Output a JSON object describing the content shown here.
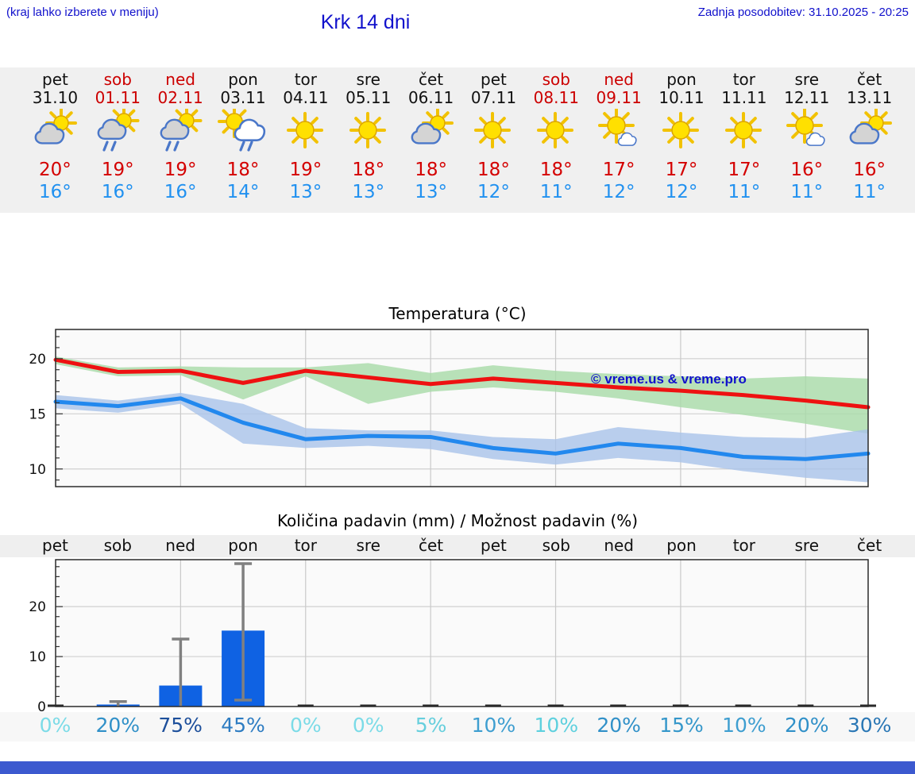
{
  "header": {
    "hint": "(kraj lahko izberete v meniju)",
    "title": "Krk 14 dni",
    "last_update": "Zadnja posodobitev: 31.10.2025 - 20:25"
  },
  "watermark": "© vreme.us & vreme.pro",
  "colors": {
    "link_blue": "#1111cc",
    "tmax_red": "#d40000",
    "tmin_blue": "#2191f0",
    "weekend_red": "#cc0000",
    "strip_bg": "#f0f0f0",
    "footer_bar": "#3c59cf",
    "max_line": "#ee1111",
    "min_line": "#2288ee",
    "max_band": "#a8dba8",
    "min_band": "#a9c3ea",
    "bar_blue": "#0f62e3",
    "whisker_gray": "#808080"
  },
  "days": [
    {
      "name": "pet",
      "date": "31.10",
      "weekend": false,
      "icon": "partly-cloudy",
      "tmax": "20°",
      "tmin": "16°",
      "pop": "0%",
      "pop_color": "#7bdbe7"
    },
    {
      "name": "sob",
      "date": "01.11",
      "weekend": true,
      "icon": "partly-cloudy-rain",
      "tmax": "19°",
      "tmin": "16°",
      "pop": "20%",
      "pop_color": "#3090c8"
    },
    {
      "name": "ned",
      "date": "02.11",
      "weekend": true,
      "icon": "partly-cloudy-rain",
      "tmax": "19°",
      "tmin": "16°",
      "pop": "75%",
      "pop_color": "#1d4f9b"
    },
    {
      "name": "pon",
      "date": "03.11",
      "weekend": false,
      "icon": "sun-cloud-right-rain",
      "tmax": "18°",
      "tmin": "14°",
      "pop": "45%",
      "pop_color": "#2d7cc2"
    },
    {
      "name": "tor",
      "date": "04.11",
      "weekend": false,
      "icon": "sunny",
      "tmax": "19°",
      "tmin": "13°",
      "pop": "0%",
      "pop_color": "#7bdbe7"
    },
    {
      "name": "sre",
      "date": "05.11",
      "weekend": false,
      "icon": "sunny",
      "tmax": "18°",
      "tmin": "13°",
      "pop": "0%",
      "pop_color": "#7bdbe7"
    },
    {
      "name": "čet",
      "date": "06.11",
      "weekend": false,
      "icon": "partly-cloudy",
      "tmax": "18°",
      "tmin": "13°",
      "pop": "5%",
      "pop_color": "#66cfdd"
    },
    {
      "name": "pet",
      "date": "07.11",
      "weekend": false,
      "icon": "sunny",
      "tmax": "18°",
      "tmin": "12°",
      "pop": "10%",
      "pop_color": "#3e9ed0"
    },
    {
      "name": "sob",
      "date": "08.11",
      "weekend": true,
      "icon": "sunny",
      "tmax": "18°",
      "tmin": "11°",
      "pop": "10%",
      "pop_color": "#5ed0de"
    },
    {
      "name": "ned",
      "date": "09.11",
      "weekend": true,
      "icon": "mostly-sunny",
      "tmax": "17°",
      "tmin": "12°",
      "pop": "20%",
      "pop_color": "#3090c8"
    },
    {
      "name": "pon",
      "date": "10.11",
      "weekend": false,
      "icon": "sunny",
      "tmax": "17°",
      "tmin": "12°",
      "pop": "15%",
      "pop_color": "#3597ca"
    },
    {
      "name": "tor",
      "date": "11.11",
      "weekend": false,
      "icon": "sunny",
      "tmax": "17°",
      "tmin": "11°",
      "pop": "10%",
      "pop_color": "#3e9ed0"
    },
    {
      "name": "sre",
      "date": "12.11",
      "weekend": false,
      "icon": "mostly-sunny",
      "tmax": "16°",
      "tmin": "11°",
      "pop": "20%",
      "pop_color": "#3090c8"
    },
    {
      "name": "čet",
      "date": "13.11",
      "weekend": false,
      "icon": "partly-cloudy",
      "tmax": "16°",
      "tmin": "11°",
      "pop": "30%",
      "pop_color": "#2a77b5"
    }
  ],
  "chart_data": [
    {
      "type": "line",
      "title": "Temperatura (°C)",
      "x_labels": [
        "pet",
        "sob",
        "ned",
        "pon",
        "tor",
        "sre",
        "čet",
        "pet",
        "sob",
        "ned",
        "pon",
        "tor",
        "sre",
        "čet"
      ],
      "ylim": [
        8.4,
        22.65
      ],
      "yticks": [
        10,
        15,
        20
      ],
      "grid": true,
      "legend_position": "none",
      "series": [
        {
          "name": "max-temp",
          "color": "#ee1111",
          "values": [
            19.9,
            18.8,
            18.9,
            17.8,
            18.9,
            18.3,
            17.7,
            18.2,
            17.8,
            17.4,
            17.1,
            16.7,
            16.2,
            15.6
          ]
        },
        {
          "name": "min-temp",
          "color": "#2288ee",
          "values": [
            16.1,
            15.7,
            16.4,
            14.2,
            12.7,
            13.0,
            12.9,
            11.9,
            11.4,
            12.3,
            11.9,
            11.1,
            10.9,
            11.4
          ]
        }
      ],
      "bands": [
        {
          "name": "max-range",
          "color": "#a8dba8",
          "upper": [
            20.2,
            19.2,
            19.3,
            19.2,
            19.2,
            19.6,
            18.7,
            19.4,
            18.9,
            18.6,
            18.4,
            18.2,
            18.4,
            18.2
          ],
          "lower": [
            19.5,
            18.4,
            18.5,
            16.3,
            18.4,
            15.9,
            17.0,
            17.4,
            17.0,
            16.4,
            15.6,
            14.9,
            14.1,
            13.2
          ]
        },
        {
          "name": "min-range",
          "color": "#a9c3ea",
          "upper": [
            16.7,
            16.2,
            16.9,
            15.9,
            13.7,
            13.5,
            13.5,
            12.9,
            12.7,
            13.8,
            13.3,
            12.9,
            12.8,
            13.6
          ],
          "lower": [
            15.5,
            15.1,
            15.9,
            12.3,
            11.9,
            12.1,
            11.8,
            10.9,
            10.4,
            11.0,
            10.6,
            9.8,
            9.2,
            8.8
          ]
        }
      ],
      "annotations": [
        "© vreme.us & vreme.pro"
      ]
    },
    {
      "type": "bar",
      "title": "Količina padavin (mm) / Možnost padavin (%)",
      "x_labels": [
        "pet",
        "sob",
        "ned",
        "pon",
        "tor",
        "sre",
        "čet",
        "pet",
        "sob",
        "ned",
        "pon",
        "tor",
        "sre",
        "čet"
      ],
      "ylim": [
        0,
        29.4
      ],
      "yticks": [
        0,
        10,
        20
      ],
      "grid": true,
      "values": [
        0,
        0.4,
        4.2,
        15.2,
        0,
        0,
        0,
        0,
        0,
        0,
        0,
        0,
        0,
        0
      ],
      "whisker_lo": [
        null,
        0,
        0,
        1.3,
        null,
        null,
        null,
        null,
        null,
        null,
        null,
        null,
        null,
        null
      ],
      "whisker_hi": [
        null,
        1.0,
        13.5,
        28.6,
        null,
        null,
        null,
        null,
        null,
        null,
        null,
        null,
        null,
        null
      ],
      "bar_color": "#0f62e3",
      "probabilities_percent": [
        0,
        20,
        75,
        45,
        0,
        0,
        5,
        10,
        10,
        20,
        15,
        10,
        20,
        30
      ]
    }
  ]
}
